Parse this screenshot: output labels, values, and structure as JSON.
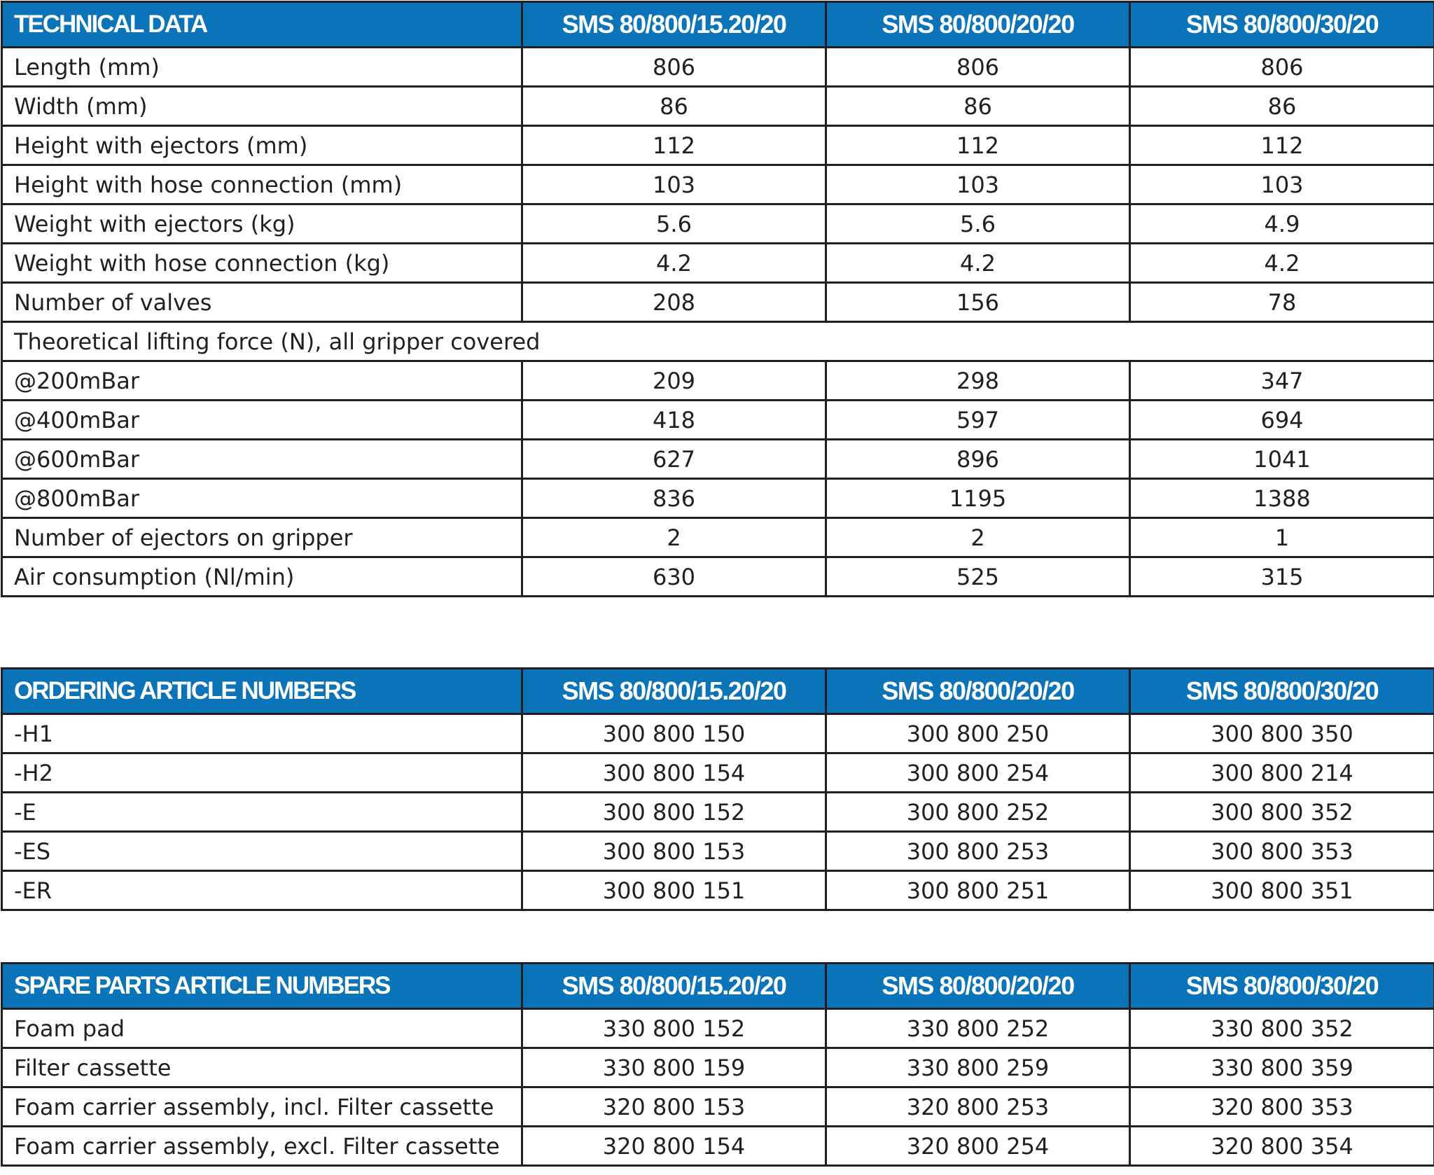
{
  "technical": {
    "title": "TECHNICAL DATA",
    "models": [
      "SMS 80/800/15.20/20",
      "SMS 80/800/20/20",
      "SMS 80/800/30/20"
    ],
    "rows": [
      {
        "label": "Length (mm)",
        "values": [
          "806",
          "806",
          "806"
        ]
      },
      {
        "label": "Width (mm)",
        "values": [
          "86",
          "86",
          "86"
        ]
      },
      {
        "label": "Height with ejectors (mm)",
        "values": [
          "112",
          "112",
          "112"
        ]
      },
      {
        "label": "Height with hose connection (mm)",
        "values": [
          "103",
          "103",
          "103"
        ]
      },
      {
        "label": "Weight with ejectors (kg)",
        "values": [
          "5.6",
          "5.6",
          "4.9"
        ]
      },
      {
        "label": "Weight with hose connection (kg)",
        "values": [
          "4.2",
          "4.2",
          "4.2"
        ]
      },
      {
        "label": "Number of valves",
        "values": [
          "208",
          "156",
          "78"
        ]
      },
      {
        "label": "Theoretical lifting force (N), all gripper covered",
        "values": []
      },
      {
        "label": "@200mBar",
        "values": [
          "209",
          "298",
          "347"
        ]
      },
      {
        "label": "@400mBar",
        "values": [
          "418",
          "597",
          "694"
        ]
      },
      {
        "label": "@600mBar",
        "values": [
          "627",
          "896",
          "1041"
        ]
      },
      {
        "label": "@800mBar",
        "values": [
          "836",
          "1195",
          "1388"
        ]
      },
      {
        "label": "Number of ejectors on gripper",
        "values": [
          "2",
          "2",
          "1"
        ]
      },
      {
        "label": "Air consumption (Nl/min)",
        "values": [
          "630",
          "525",
          "315"
        ]
      }
    ]
  },
  "ordering": {
    "title": "ORDERING ARTICLE NUMBERS",
    "models": [
      "SMS 80/800/15.20/20",
      "SMS 80/800/20/20",
      "SMS 80/800/30/20"
    ],
    "rows": [
      {
        "label": "-H1",
        "values": [
          "300 800 150",
          "300 800 250",
          "300 800 350"
        ]
      },
      {
        "label": "-H2",
        "values": [
          "300 800 154",
          "300 800 254",
          "300 800 214"
        ]
      },
      {
        "label": "-E",
        "values": [
          "300 800 152",
          "300 800 252",
          "300 800 352"
        ]
      },
      {
        "label": "-ES",
        "values": [
          "300 800 153",
          "300 800 253",
          "300 800 353"
        ]
      },
      {
        "label": "-ER",
        "values": [
          "300 800 151",
          "300 800 251",
          "300 800 351"
        ]
      }
    ]
  },
  "spare": {
    "title": "SPARE PARTS ARTICLE NUMBERS",
    "models": [
      "SMS 80/800/15.20/20",
      "SMS 80/800/20/20",
      "SMS 80/800/30/20"
    ],
    "rows": [
      {
        "label": "Foam pad",
        "values": [
          "330 800 152",
          "330 800 252",
          "330 800 352"
        ]
      },
      {
        "label": "Filter cassette",
        "values": [
          "330 800 159",
          "330 800 259",
          "330 800 359"
        ]
      },
      {
        "label": "Foam carrier assembly, incl. Filter cassette",
        "values": [
          "320 800 153",
          "320 800 253",
          "320 800 353"
        ]
      },
      {
        "label": "Foam carrier assembly, excl. Filter cassette",
        "values": [
          "320 800 154",
          "320 800 254",
          "320 800 354"
        ]
      }
    ]
  },
  "colors": {
    "header_bg": "#0b74b9",
    "header_text": "#ffffff",
    "border": "#231f20"
  }
}
